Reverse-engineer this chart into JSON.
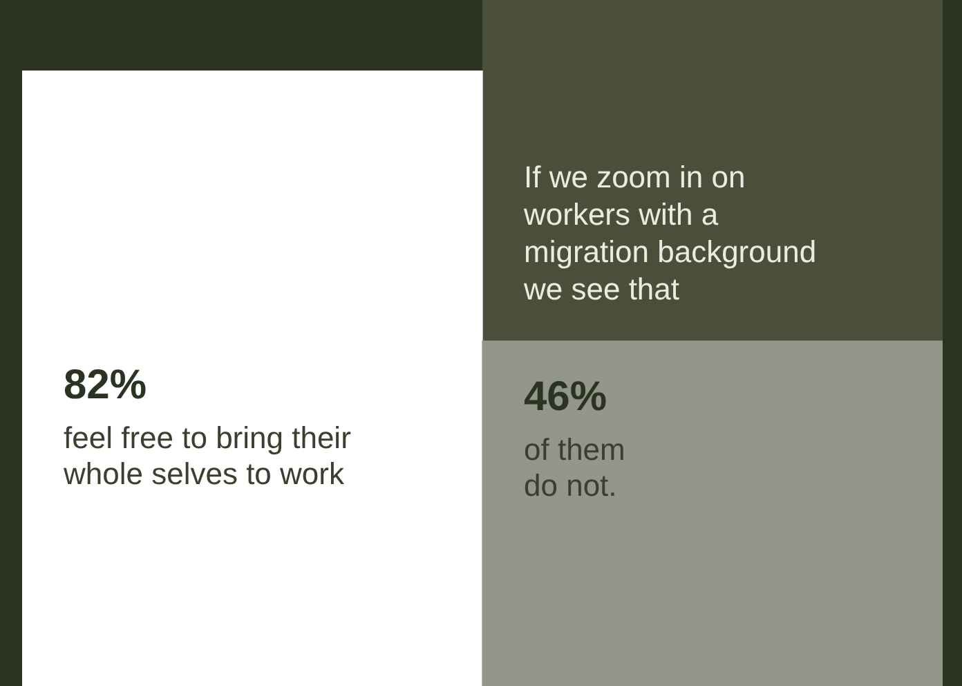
{
  "chart_data": {
    "type": "bar",
    "categories": [
      null,
      null
    ],
    "values": [
      82,
      46
    ],
    "colors": [
      "#ffffff",
      "#95968a"
    ],
    "tick_labels": false,
    "value_labels": [
      "82%",
      "46%"
    ],
    "annotations": [
      "feel free to bring their whole selves to work",
      "If we zoom in on workers with a migration background we see that",
      "of them do not."
    ]
  }
}
